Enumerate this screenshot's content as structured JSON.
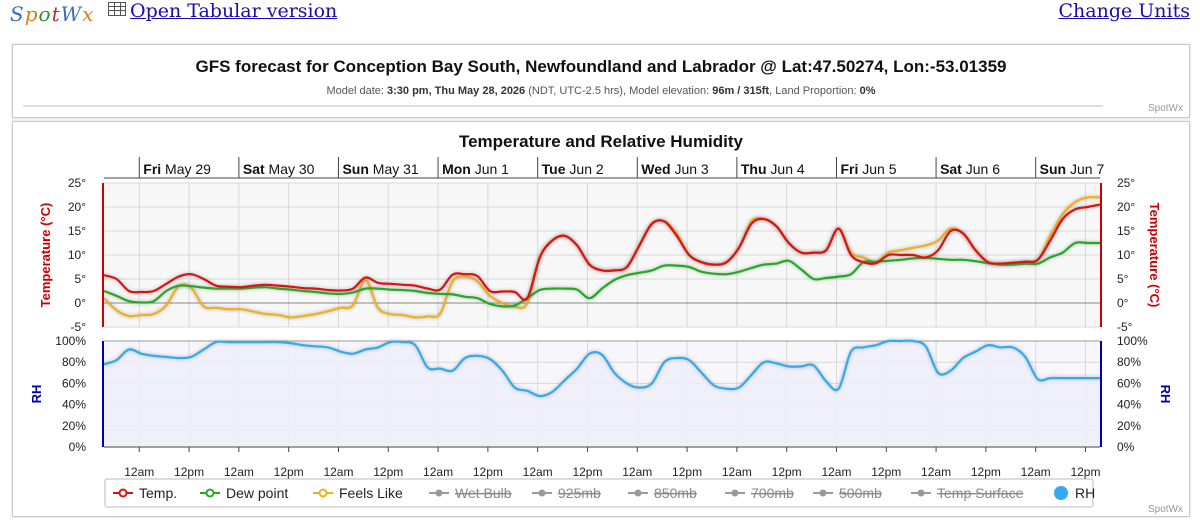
{
  "topbar": {
    "logo_text": "SpotWx",
    "tabular_link": "Open Tabular version",
    "units_link": "Change Units"
  },
  "header": {
    "title": "GFS forecast for Conception Bay South, Newfoundland and Labrador @ Lat:47.50274, Lon:-53.01359",
    "model_date_label": "Model date: ",
    "model_date": "3:30 pm, Thu May 28, 2026",
    "tz": " (NDT, UTC-2.5 hrs), Model elevation: ",
    "elevation": "96m / 315ft",
    "land_label": ", Land Proportion: ",
    "land": "0%",
    "credit": "SpotWx"
  },
  "colors": {
    "temp": "#dd1111",
    "dew": "#22aa22",
    "feels": "#f0b020",
    "rh": "#33aaee",
    "temp_axis": "#cc0000",
    "rh_axis": "#0000aa",
    "rh_fill": "#eeeefa"
  },
  "chart_data": {
    "type": "line",
    "title": "Temperature and Relative Humidity",
    "days": [
      {
        "bold": "Fri",
        "rest": " May 29"
      },
      {
        "bold": "Sat",
        "rest": " May 30"
      },
      {
        "bold": "Sun",
        "rest": " May 31"
      },
      {
        "bold": "Mon",
        "rest": " Jun 1"
      },
      {
        "bold": "Tue",
        "rest": " Jun 2"
      },
      {
        "bold": "Wed",
        "rest": " Jun 3"
      },
      {
        "bold": "Thu",
        "rest": " Jun 4"
      },
      {
        "bold": "Fri",
        "rest": " Jun 5"
      },
      {
        "bold": "Sat",
        "rest": " Jun 6"
      },
      {
        "bold": "Sun",
        "rest": " Jun 7"
      }
    ],
    "x_unit": "hours after forecast start (Thu May 28, ~3:30 pm)",
    "x_range": [
      0,
      240
    ],
    "x_tick_labels": [
      "12am",
      "12pm",
      "12am",
      "12pm",
      "12am",
      "12pm",
      "12am",
      "12pm",
      "12am",
      "12pm",
      "12am",
      "12pm",
      "12am",
      "12pm",
      "12am",
      "12pm",
      "12am",
      "12pm",
      "12am",
      "12pm"
    ],
    "temp_axis": {
      "label": "Temperature (°C)",
      "ylim": [
        -5,
        25
      ],
      "ticks": [
        "25°",
        "20°",
        "15°",
        "10°",
        "5°",
        "0°",
        "-5°"
      ]
    },
    "rh_axis": {
      "label": "RH",
      "ylim": [
        0,
        100
      ],
      "ticks": [
        "100%",
        "80%",
        "60%",
        "40%",
        "20%",
        "0%"
      ]
    },
    "series": [
      {
        "name": "Temp.",
        "key": "temp",
        "x": [
          0,
          3,
          6,
          9,
          12,
          15,
          18,
          21,
          24,
          27,
          30,
          33,
          36,
          39,
          42,
          45,
          48,
          51,
          54,
          57,
          60,
          63,
          66,
          69,
          72,
          75,
          78,
          81,
          84,
          87,
          90,
          93,
          96,
          99,
          102,
          105,
          108,
          111,
          114,
          117,
          120,
          123,
          126,
          129,
          132,
          135,
          138,
          141,
          144,
          147,
          150,
          153,
          156,
          159,
          162,
          165,
          168,
          171,
          174,
          177,
          180,
          183,
          186,
          189,
          192,
          195,
          198,
          201,
          204,
          207,
          210,
          213,
          216,
          219,
          222,
          225,
          228,
          231,
          234,
          237,
          240
        ],
        "y": [
          5.8,
          5,
          2.5,
          2.3,
          2.5,
          4,
          5.5,
          6,
          5,
          3.6,
          3.4,
          3.3,
          3.6,
          3.8,
          3.6,
          3.4,
          3.1,
          3,
          2.7,
          2.6,
          3,
          5.3,
          4.2,
          4,
          3.8,
          3.6,
          3,
          2.8,
          5.9,
          6,
          5.6,
          2.5,
          2.4,
          2.3,
          1,
          9.5,
          13,
          14,
          12,
          8,
          6.8,
          6.8,
          7.5,
          12,
          16.5,
          17,
          14,
          10,
          8.5,
          8,
          8.5,
          11.5,
          16.5,
          17.5,
          16,
          12.5,
          10.5,
          10.5,
          11,
          15.5,
          10,
          8.5,
          8.3,
          10,
          10,
          10,
          9.5,
          11,
          15,
          14.5,
          11,
          8.5,
          8.2,
          8.4,
          8.6,
          9,
          13,
          17.5,
          19.5,
          20,
          20.5
        ]
      },
      {
        "name": "Dew point",
        "key": "dew",
        "x": [
          0,
          3,
          6,
          9,
          12,
          15,
          18,
          21,
          24,
          27,
          30,
          33,
          36,
          39,
          42,
          45,
          48,
          51,
          54,
          57,
          60,
          63,
          66,
          69,
          72,
          75,
          78,
          81,
          84,
          87,
          90,
          93,
          96,
          99,
          102,
          105,
          108,
          111,
          114,
          117,
          120,
          123,
          126,
          129,
          132,
          135,
          138,
          141,
          144,
          147,
          150,
          153,
          156,
          159,
          162,
          165,
          168,
          171,
          174,
          177,
          180,
          183,
          186,
          189,
          192,
          195,
          198,
          201,
          204,
          207,
          210,
          213,
          216,
          219,
          222,
          225,
          228,
          231,
          234,
          237,
          240
        ],
        "y": [
          2.5,
          1.5,
          0.4,
          0.1,
          0.4,
          2.5,
          3.6,
          3.5,
          3.2,
          3,
          3,
          3,
          3.2,
          3.3,
          3,
          2.8,
          2.5,
          2.3,
          2,
          1.9,
          2.2,
          3,
          3,
          2.8,
          2.7,
          2.5,
          2.1,
          1.9,
          1.8,
          1.3,
          1,
          -0.2,
          -0.7,
          -0.5,
          1,
          2.7,
          3,
          3,
          2.8,
          1,
          3,
          4.8,
          5.8,
          6.3,
          6.8,
          7.8,
          7.8,
          7.5,
          6.5,
          6.1,
          6,
          6.5,
          7.3,
          8,
          8.2,
          8.8,
          7,
          5,
          5.2,
          5.5,
          6,
          8.5,
          8.6,
          8.8,
          9,
          9.3,
          9.4,
          9.2,
          9,
          9,
          8.7,
          8.3,
          8,
          8,
          8.2,
          8.2,
          9.5,
          10.5,
          12.5,
          12.5,
          12.5
        ]
      },
      {
        "name": "Feels Like",
        "key": "feels",
        "x": [
          0,
          3,
          6,
          9,
          12,
          15,
          18,
          21,
          24,
          27,
          30,
          33,
          36,
          39,
          42,
          45,
          48,
          51,
          54,
          57,
          60,
          63,
          66,
          69,
          72,
          75,
          78,
          81,
          84,
          87,
          90,
          93,
          96,
          99,
          102,
          105,
          108,
          111,
          114,
          117,
          120,
          123,
          126,
          129,
          132,
          135,
          138,
          141,
          144,
          147,
          150,
          153,
          156,
          159,
          162,
          165,
          168,
          171,
          174,
          177,
          180,
          183,
          186,
          189,
          192,
          195,
          198,
          201,
          204,
          207,
          210,
          213,
          216,
          219,
          222,
          225,
          228,
          231,
          234,
          237,
          240
        ],
        "y": [
          1,
          -1.5,
          -2.7,
          -2.5,
          -2.3,
          -0.5,
          3.5,
          3.2,
          -0.7,
          -1,
          -1.3,
          -1.3,
          -1.8,
          -2.3,
          -2.5,
          -3,
          -2.7,
          -2.3,
          -1.7,
          -1,
          -0.5,
          4.8,
          -1,
          -2.3,
          -2.5,
          -3,
          -2.8,
          -2.2,
          4.5,
          5.5,
          4.5,
          1.5,
          0,
          -0.8,
          0,
          9.5,
          13,
          14,
          12,
          8,
          6.8,
          6.8,
          7.5,
          12,
          16.5,
          17,
          14.5,
          10,
          8.5,
          8,
          8.5,
          11.5,
          17,
          17.5,
          16,
          12.5,
          10.5,
          10.5,
          11,
          15.5,
          10.5,
          9.5,
          8.5,
          10.5,
          11,
          11.5,
          12,
          13,
          15.5,
          14.5,
          11,
          8.5,
          8.2,
          8.4,
          8.6,
          9,
          14,
          18.5,
          21,
          22,
          22
        ]
      },
      {
        "name": "RH",
        "key": "rh",
        "x": [
          0,
          3,
          6,
          9,
          12,
          15,
          18,
          21,
          24,
          27,
          30,
          33,
          36,
          39,
          42,
          45,
          48,
          51,
          54,
          57,
          60,
          63,
          66,
          69,
          72,
          75,
          78,
          81,
          84,
          87,
          90,
          93,
          96,
          99,
          102,
          105,
          108,
          111,
          114,
          117,
          120,
          123,
          126,
          129,
          132,
          135,
          138,
          141,
          144,
          147,
          150,
          153,
          156,
          159,
          162,
          165,
          168,
          171,
          174,
          177,
          180,
          183,
          186,
          189,
          192,
          195,
          198,
          201,
          204,
          207,
          210,
          213,
          216,
          219,
          222,
          225,
          228,
          231,
          234,
          237,
          240
        ],
        "y": [
          78,
          82,
          92,
          88,
          86,
          85,
          84,
          85,
          92,
          99,
          99,
          99,
          99,
          99,
          99,
          98,
          96,
          95,
          94,
          90,
          88,
          92,
          94,
          99,
          99,
          96,
          75,
          74,
          72,
          84,
          86,
          83,
          72,
          56,
          53,
          48,
          52,
          63,
          74,
          88,
          87,
          70,
          60,
          56,
          60,
          80,
          84,
          82,
          70,
          58,
          55,
          56,
          68,
          80,
          79,
          76,
          76,
          77,
          62,
          55,
          90,
          94,
          96,
          100,
          100,
          100,
          95,
          70,
          72,
          84,
          90,
          96,
          94,
          94,
          85,
          64,
          65,
          65,
          65,
          65,
          65
        ]
      }
    ],
    "legend": {
      "placement": "bottom",
      "items": [
        {
          "label": "Temp.",
          "key": "temp",
          "enabled": true
        },
        {
          "label": "Dew point",
          "key": "dew",
          "enabled": true
        },
        {
          "label": "Feels Like",
          "key": "feels",
          "enabled": true
        },
        {
          "label": "Wet Bulb",
          "key": "wetbulb",
          "enabled": false
        },
        {
          "label": "925mb",
          "key": "925",
          "enabled": false
        },
        {
          "label": "850mb",
          "key": "850",
          "enabled": false
        },
        {
          "label": "700mb",
          "key": "700",
          "enabled": false
        },
        {
          "label": "500mb",
          "key": "500",
          "enabled": false
        },
        {
          "label": "Temp Surface",
          "key": "tsurf",
          "enabled": false
        },
        {
          "label": "RH",
          "key": "rh",
          "enabled": true
        }
      ]
    },
    "credit": "SpotWx"
  }
}
